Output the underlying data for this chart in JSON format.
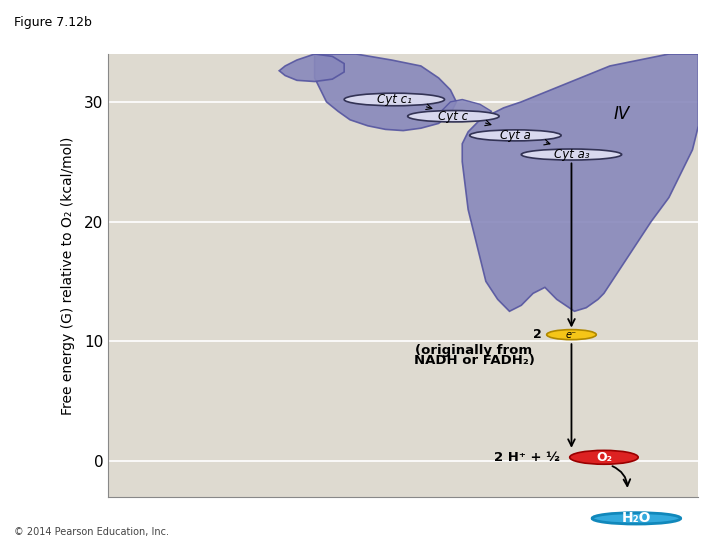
{
  "figure_title": "Figure 7.12b",
  "ylabel": "Free energy (G) relative to O₂ (kcal/mol)",
  "yticks": [
    0,
    10,
    20,
    30
  ],
  "ylim": [
    -3,
    34
  ],
  "xlim": [
    0,
    10
  ],
  "bg_color": "#dedad0",
  "fig_bg": "#ffffff",
  "copyright": "© 2014 Pearson Education, Inc.",
  "protein_color": "#8888bb",
  "cyt_fill": "#d8d8ee",
  "cyt_outline": "#333355",
  "electron_color": "#f5c518",
  "o2_color": "#dd2222",
  "h2o_color": "#33aadd",
  "label_IV": "IV",
  "label_cytc1": "Cyt c₁",
  "label_cytc": "Cyt c",
  "label_cyta": "Cyt a",
  "label_cyta3": "Cyt a₃",
  "label_nadh_line1": "(originally from",
  "label_nadh_line2": "NADH or FADH₂)",
  "label_o2_text": "2 H⁺ + ½",
  "label_o2": "O₂",
  "label_h2o": "H₂O",
  "label_2e": "2",
  "label_eminus": "e⁻"
}
